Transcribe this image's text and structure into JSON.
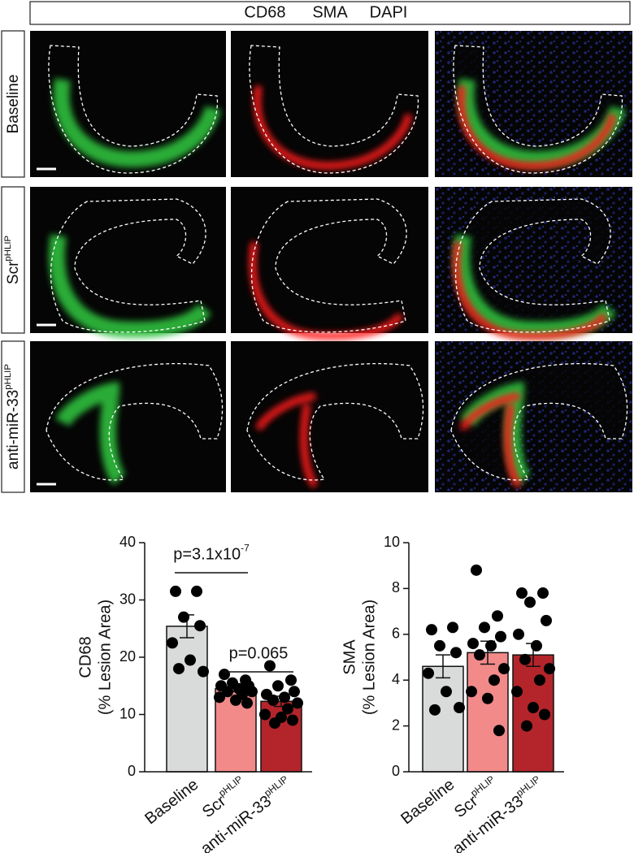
{
  "header": {
    "channels": [
      {
        "label": "CD68",
        "color": "#1fa84f"
      },
      {
        "label": "SMA",
        "color": "#e8262b"
      },
      {
        "label": "DAPI",
        "color": "#2e3d9c"
      }
    ]
  },
  "rows": [
    {
      "label": "Baseline",
      "superscript": null
    },
    {
      "label": "Scr",
      "superscript": "pHLIP"
    },
    {
      "label": "anti-miR-33",
      "superscript": "pHLIP"
    }
  ],
  "chart_data": [
    {
      "type": "bar",
      "ylabel": [
        "CD68",
        "(% Lesion Area)"
      ],
      "categories": [
        "Baseline",
        "Scr",
        "anti-miR-33"
      ],
      "category_superscripts": [
        null,
        "pHLIP",
        "pHLIP"
      ],
      "values": [
        25.4,
        14.5,
        12.3
      ],
      "errors": [
        2.0,
        0.5,
        0.9
      ],
      "colors": [
        "#d9dbda",
        "#f28a8a",
        "#b3252a"
      ],
      "points": [
        [
          31.5,
          31.5,
          27,
          25.5,
          22.5,
          19.5,
          18,
          17.5
        ],
        [
          17,
          16,
          15.5,
          15,
          15,
          14.5,
          14,
          14,
          13.5,
          13,
          12.5,
          12
        ],
        [
          18.5,
          16,
          15,
          14,
          13.5,
          13,
          12.5,
          12,
          11,
          10,
          9.5,
          9,
          8.5
        ]
      ],
      "ylim": [
        0,
        40
      ],
      "yticks": [
        0,
        10,
        20,
        30,
        40
      ],
      "annotations": [
        {
          "text": "p=3.1x10",
          "superscript": "-7"
        },
        {
          "text": "p=0.065",
          "superscript": null
        }
      ]
    },
    {
      "type": "bar",
      "ylabel": [
        "SMA",
        "(% Lesion Area)"
      ],
      "categories": [
        "Baseline",
        "Scr",
        "anti-miR-33"
      ],
      "category_superscripts": [
        null,
        "pHLIP",
        "pHLIP"
      ],
      "values": [
        4.6,
        5.2,
        5.1
      ],
      "errors": [
        0.5,
        0.5,
        0.5
      ],
      "colors": [
        "#d9dbda",
        "#f28a8a",
        "#b3252a"
      ],
      "points": [
        [
          6.2,
          6.3,
          5.5,
          5.2,
          4.3,
          3.5,
          2.7,
          2.8
        ],
        [
          8.8,
          6.8,
          6.3,
          5.9,
          5.6,
          5.5,
          5.1,
          4.5,
          4.0,
          3.5,
          3.2,
          1.8
        ],
        [
          7.8,
          7.8,
          7.4,
          6.6,
          6.0,
          5.5,
          4.9,
          4.5,
          4.0,
          3.5,
          2.8,
          2.5,
          2.0
        ]
      ],
      "ylim": [
        0,
        10
      ],
      "yticks": [
        0,
        2,
        4,
        6,
        8,
        10
      ],
      "annotations": []
    }
  ]
}
